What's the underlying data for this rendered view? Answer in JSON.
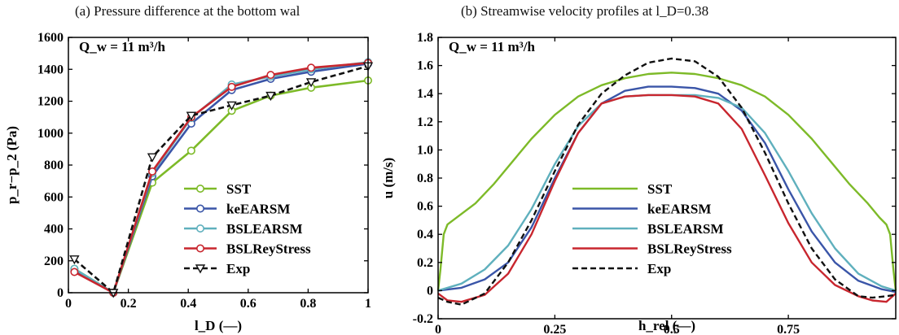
{
  "chart_data": [
    {
      "type": "line",
      "title": "(a) Pressure difference at the bottom wal",
      "annotation": "Q_w = 11 m³/h",
      "xlabel": "l_D (—)",
      "ylabel": "p_r−p_2 (Pa)",
      "xlim": [
        0,
        1
      ],
      "ylim": [
        0,
        1600
      ],
      "xticks": [
        "0",
        "0.2",
        "0.4",
        "0.6",
        "0.8",
        "1"
      ],
      "yticks": [
        "0",
        "200",
        "400",
        "600",
        "800",
        "1000",
        "1200",
        "1400",
        "1600"
      ],
      "legend_position": "bottom-right",
      "grid": false,
      "series": [
        {
          "name": "SST",
          "color": "#7dba28",
          "marker": "circle",
          "dashed": false,
          "x": [
            0.02,
            0.15,
            0.28,
            0.41,
            0.545,
            0.675,
            0.81,
            1.0
          ],
          "y": [
            150,
            0,
            690,
            890,
            1140,
            1235,
            1285,
            1330
          ]
        },
        {
          "name": "keEARSM",
          "color": "#3a55a8",
          "marker": "circle",
          "dashed": false,
          "x": [
            0.02,
            0.15,
            0.28,
            0.41,
            0.545,
            0.675,
            0.81,
            1.0
          ],
          "y": [
            135,
            0,
            730,
            1060,
            1270,
            1340,
            1385,
            1435
          ]
        },
        {
          "name": "BSLEARSM",
          "color": "#5fb0bd",
          "marker": "circle",
          "dashed": false,
          "x": [
            0.02,
            0.15,
            0.28,
            0.41,
            0.545,
            0.675,
            0.81,
            1.0
          ],
          "y": [
            150,
            0,
            750,
            1095,
            1305,
            1355,
            1400,
            1445
          ]
        },
        {
          "name": "BSLReyStress",
          "color": "#c8262e",
          "marker": "circle",
          "dashed": false,
          "x": [
            0.02,
            0.15,
            0.28,
            0.41,
            0.545,
            0.675,
            0.81,
            1.0
          ],
          "y": [
            130,
            0,
            760,
            1100,
            1290,
            1365,
            1410,
            1440
          ]
        },
        {
          "name": "Exp",
          "color": "#111111",
          "marker": "triangle-down",
          "dashed": true,
          "x": [
            0.02,
            0.15,
            0.28,
            0.41,
            0.545,
            0.675,
            0.81,
            1.0
          ],
          "y": [
            210,
            0,
            850,
            1110,
            1175,
            1235,
            1320,
            1420
          ]
        }
      ]
    },
    {
      "type": "line",
      "title": "(b) Streamwise velocity profiles at l_D=0.38",
      "annotation": "Q_w = 11 m³/h",
      "xlabel": "h_rel (—)",
      "ylabel": "u (m/s)",
      "xlim": [
        0,
        0.98
      ],
      "ylim": [
        -0.2,
        1.8
      ],
      "xticks": [
        "0",
        "0.25",
        "0.5",
        "0.75"
      ],
      "yticks": [
        "-0.2",
        "0",
        "0.2",
        "0.4",
        "0.6",
        "0.8",
        "1.0",
        "1.2",
        "1.4",
        "1.6",
        "1.8"
      ],
      "legend_position": "bottom-center",
      "grid": false,
      "series": [
        {
          "name": "SST",
          "color": "#7dba28",
          "dashed": false,
          "x": [
            0,
            0.005,
            0.012,
            0.02,
            0.04,
            0.08,
            0.12,
            0.16,
            0.2,
            0.25,
            0.3,
            0.35,
            0.4,
            0.45,
            0.5,
            0.55,
            0.6,
            0.65,
            0.7,
            0.75,
            0.8,
            0.84,
            0.88,
            0.92,
            0.945,
            0.96,
            0.968,
            0.975,
            0.98
          ],
          "y": [
            0,
            0.15,
            0.4,
            0.47,
            0.52,
            0.62,
            0.76,
            0.92,
            1.08,
            1.25,
            1.38,
            1.46,
            1.51,
            1.54,
            1.55,
            1.54,
            1.51,
            1.46,
            1.38,
            1.25,
            1.08,
            0.92,
            0.76,
            0.62,
            0.52,
            0.47,
            0.4,
            0.15,
            0
          ]
        },
        {
          "name": "keEARSM",
          "color": "#3a55a8",
          "dashed": false,
          "x": [
            0,
            0.05,
            0.1,
            0.15,
            0.2,
            0.25,
            0.3,
            0.35,
            0.4,
            0.45,
            0.5,
            0.55,
            0.6,
            0.65,
            0.7,
            0.75,
            0.8,
            0.85,
            0.9,
            0.95,
            0.98
          ],
          "y": [
            0,
            0.02,
            0.08,
            0.2,
            0.45,
            0.8,
            1.12,
            1.33,
            1.42,
            1.45,
            1.45,
            1.44,
            1.4,
            1.28,
            1.05,
            0.72,
            0.42,
            0.2,
            0.07,
            0.01,
            -0.01
          ]
        },
        {
          "name": "BSLEARSM",
          "color": "#5fb0bd",
          "dashed": false,
          "x": [
            0,
            0.05,
            0.1,
            0.15,
            0.2,
            0.25,
            0.3,
            0.35,
            0.4,
            0.45,
            0.5,
            0.55,
            0.6,
            0.65,
            0.7,
            0.75,
            0.8,
            0.85,
            0.9,
            0.95,
            0.98
          ],
          "y": [
            0,
            0.05,
            0.15,
            0.32,
            0.58,
            0.9,
            1.17,
            1.33,
            1.38,
            1.39,
            1.39,
            1.39,
            1.37,
            1.3,
            1.12,
            0.85,
            0.55,
            0.3,
            0.12,
            0.03,
            0
          ]
        },
        {
          "name": "BSLReyStress",
          "color": "#c8262e",
          "dashed": false,
          "x": [
            0,
            0.02,
            0.05,
            0.1,
            0.15,
            0.2,
            0.25,
            0.3,
            0.35,
            0.4,
            0.45,
            0.5,
            0.55,
            0.6,
            0.65,
            0.7,
            0.75,
            0.8,
            0.85,
            0.9,
            0.93,
            0.96,
            0.98
          ],
          "y": [
            -0.02,
            -0.07,
            -0.08,
            -0.03,
            0.12,
            0.4,
            0.78,
            1.12,
            1.33,
            1.38,
            1.39,
            1.39,
            1.38,
            1.33,
            1.15,
            0.82,
            0.48,
            0.2,
            0.04,
            -0.04,
            -0.07,
            -0.08,
            -0.02
          ]
        },
        {
          "name": "Exp",
          "color": "#111111",
          "dashed": true,
          "x": [
            0,
            0.02,
            0.05,
            0.1,
            0.15,
            0.2,
            0.25,
            0.3,
            0.35,
            0.4,
            0.45,
            0.5,
            0.55,
            0.6,
            0.65,
            0.7,
            0.75,
            0.8,
            0.85,
            0.9,
            0.93,
            0.96,
            0.98
          ],
          "y": [
            -0.05,
            -0.08,
            -0.1,
            -0.02,
            0.2,
            0.5,
            0.85,
            1.18,
            1.4,
            1.53,
            1.62,
            1.65,
            1.63,
            1.52,
            1.3,
            0.98,
            0.62,
            0.3,
            0.08,
            -0.04,
            -0.05,
            -0.04,
            -0.03
          ]
        }
      ]
    }
  ]
}
